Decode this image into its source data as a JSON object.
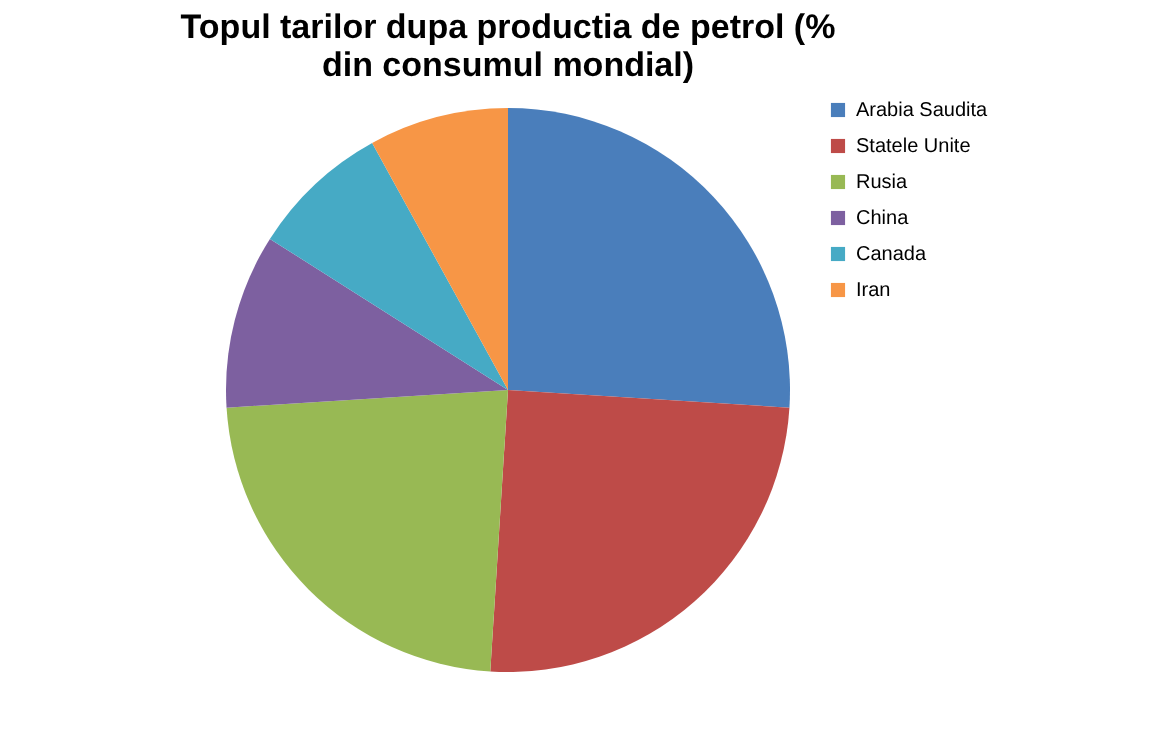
{
  "chart_data": {
    "type": "pie",
    "title": "Topul tarilor dupa productia de petrol (% din consumul mondial)",
    "categories": [
      "Arabia Saudita",
      "Statele Unite",
      "Rusia",
      "China",
      "Canada",
      "Iran"
    ],
    "values": [
      26,
      25,
      23,
      10,
      8,
      8
    ],
    "colors": [
      "#4a7ebb",
      "#be4b48",
      "#98b954",
      "#7d60a0",
      "#46aac5",
      "#f79646"
    ],
    "legend": "right"
  }
}
